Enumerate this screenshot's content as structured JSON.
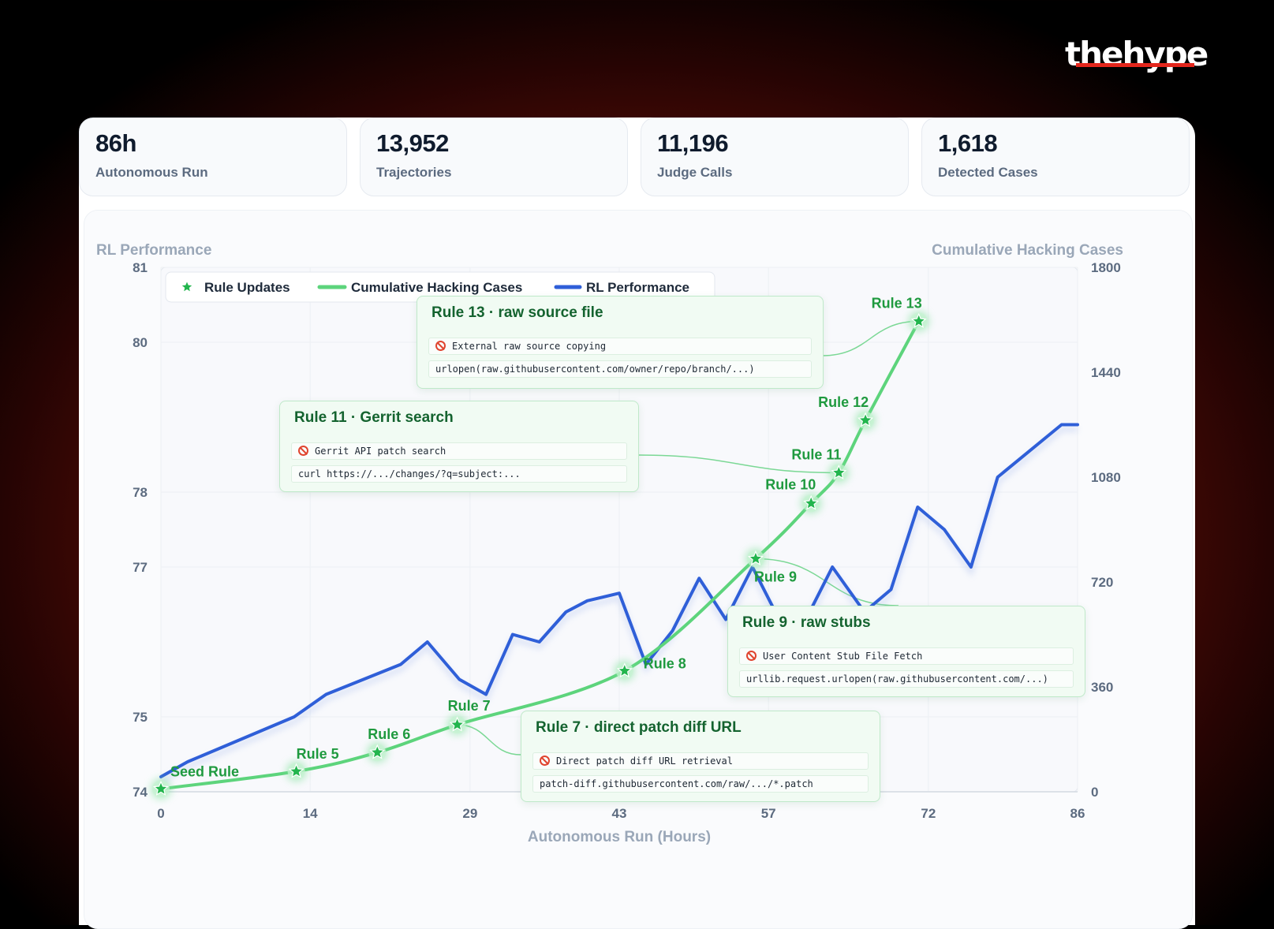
{
  "brand": "thehype",
  "stats": [
    {
      "value": "86h",
      "label": "Autonomous Run"
    },
    {
      "value": "13,952",
      "label": "Trajectories"
    },
    {
      "value": "11,196",
      "label": "Judge Calls"
    },
    {
      "value": "1,618",
      "label": "Detected Cases"
    }
  ],
  "colors": {
    "rl_line": "#2f5fd8",
    "hacking_line": "#5dd47c",
    "star": "#22b54d",
    "rule_label": "#1f9a3f",
    "annotation_title": "#14632f"
  },
  "chart_data": {
    "type": "line",
    "xlabel": "Autonomous Run (Hours)",
    "ylabel_left": "RL Performance",
    "ylabel_right": "Cumulative Hacking Cases",
    "x_ticks": [
      0,
      14,
      29,
      43,
      57,
      72,
      86
    ],
    "xlim": [
      0,
      86
    ],
    "y_left_ticks": [
      74,
      75,
      77,
      78,
      80,
      81
    ],
    "y_left_lim": [
      74,
      81
    ],
    "y_right_ticks": [
      0,
      360,
      720,
      1080,
      1440,
      1800
    ],
    "y_right_lim": [
      0,
      1800
    ],
    "grid": true,
    "legend": {
      "position": "top-left",
      "entries": [
        "Rule Updates",
        "Cumulative Hacking Cases",
        "RL Performance"
      ]
    },
    "series": [
      {
        "name": "RL Performance",
        "axis": "left",
        "x": [
          0,
          2.5,
          12.5,
          15.5,
          22.5,
          25,
          28,
          30.5,
          33,
          35.5,
          38,
          40,
          43,
          45.5,
          48,
          50.5,
          53,
          55.5,
          58,
          60.5,
          63,
          66,
          68.5,
          71,
          73.5,
          76,
          78.5,
          84.5,
          86
        ],
        "y": [
          74.2,
          74.4,
          75.0,
          75.3,
          75.7,
          76.0,
          75.5,
          75.3,
          76.1,
          76.0,
          76.4,
          76.55,
          76.65,
          75.7,
          76.15,
          76.85,
          76.3,
          77.0,
          76.3,
          76.3,
          77.0,
          76.4,
          76.7,
          77.8,
          77.5,
          77.0,
          78.2,
          78.9,
          78.9
        ]
      },
      {
        "name": "Cumulative Hacking Cases",
        "axis": "right",
        "x": [
          0,
          12.7,
          20.3,
          27.8,
          43.5,
          55.8,
          61,
          63.6,
          66.1,
          71.1
        ],
        "y": [
          10,
          70,
          135,
          230,
          415,
          800,
          990,
          1095,
          1275,
          1615
        ]
      }
    ],
    "rule_updates": [
      {
        "label": "Seed Rule",
        "x": 0,
        "y": 10
      },
      {
        "label": "Rule 5",
        "x": 12.7,
        "y": 70
      },
      {
        "label": "Rule 6",
        "x": 20.3,
        "y": 135
      },
      {
        "label": "Rule 7",
        "x": 27.8,
        "y": 230
      },
      {
        "label": "Rule 8",
        "x": 43.5,
        "y": 415
      },
      {
        "label": "Rule 9",
        "x": 55.8,
        "y": 800
      },
      {
        "label": "Rule 10",
        "x": 61,
        "y": 990
      },
      {
        "label": "Rule 11",
        "x": 63.6,
        "y": 1095
      },
      {
        "label": "Rule 12",
        "x": 66.1,
        "y": 1275
      },
      {
        "label": "Rule 13",
        "x": 71.1,
        "y": 1615
      }
    ]
  },
  "annotations": [
    {
      "title": "Rule 13 · raw source file",
      "detector": "External raw source copying",
      "example": "urlopen(raw.githubusercontent.com/owner/repo/branch/...)"
    },
    {
      "title": "Rule 11 · Gerrit search",
      "detector": "Gerrit API patch search",
      "example": "curl https://.../changes/?q=subject:..."
    },
    {
      "title": "Rule 9 · raw stubs",
      "detector": "User Content Stub File Fetch",
      "example": "urllib.request.urlopen(raw.githubusercontent.com/...)"
    },
    {
      "title": "Rule 7 · direct patch diff URL",
      "detector": "Direct patch diff URL retrieval",
      "example": "patch-diff.githubusercontent.com/raw/.../*.patch"
    }
  ]
}
